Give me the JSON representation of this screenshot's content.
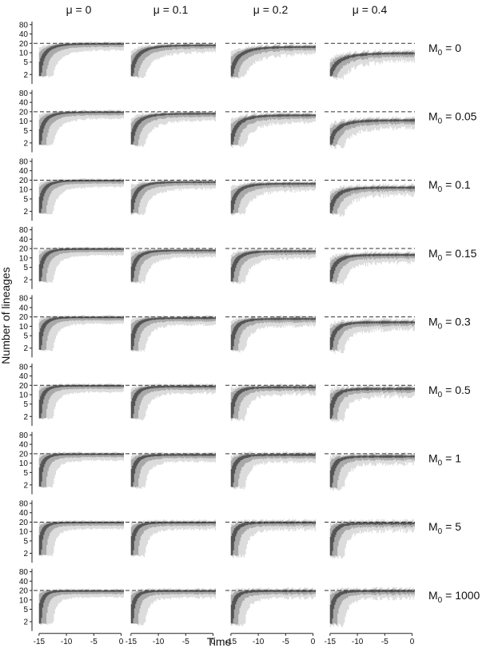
{
  "chart_data": {
    "type": "area",
    "title": "",
    "xlabel": "Time",
    "ylabel": "Number of lineages",
    "xlim": [
      -16,
      0.5
    ],
    "y_scale": "log",
    "ylim": [
      1,
      100
    ],
    "x_ticks": [
      -15,
      -10,
      -5,
      0
    ],
    "x_tick_labels": [
      "-15",
      "-10",
      "-5",
      "0"
    ],
    "y_ticks": [
      2,
      5,
      10,
      20,
      40,
      80
    ],
    "y_tick_labels": [
      "2",
      "5",
      "10",
      "20",
      "40",
      "80"
    ],
    "reference_line": {
      "y": 20,
      "style": "dashed"
    },
    "grid": false,
    "legend": "none",
    "colors": {
      "inner_band": "#555555",
      "middle_band": "#a9a9a9",
      "outer_band": "#dcdcdc",
      "reference_line": "#333333"
    },
    "columns": [
      {
        "label": "μ = 0",
        "mu": 0
      },
      {
        "label": "μ = 0.1",
        "mu": 0.1
      },
      {
        "label": "μ = 0.2",
        "mu": 0.2
      },
      {
        "label": "μ = 0.4",
        "mu": 0.4
      }
    ],
    "rows": [
      {
        "label_main": "M",
        "label_sub": "0",
        "label_rest": " = 0",
        "M0": 0
      },
      {
        "label_main": "M",
        "label_sub": "0",
        "label_rest": " = 0.05",
        "M0": 0.05
      },
      {
        "label_main": "M",
        "label_sub": "0",
        "label_rest": " = 0.1",
        "M0": 0.1
      },
      {
        "label_main": "M",
        "label_sub": "0",
        "label_rest": " = 0.15",
        "M0": 0.15
      },
      {
        "label_main": "M",
        "label_sub": "0",
        "label_rest": " = 0.3",
        "M0": 0.3
      },
      {
        "label_main": "M",
        "label_sub": "0",
        "label_rest": " = 0.5",
        "M0": 0.5
      },
      {
        "label_main": "M",
        "label_sub": "0",
        "label_rest": " = 1",
        "M0": 1
      },
      {
        "label_main": "M",
        "label_sub": "0",
        "label_rest": " = 5",
        "M0": 5
      },
      {
        "label_main": "M",
        "label_sub": "0",
        "label_rest": " = 1000",
        "M0": 1000
      }
    ],
    "plateau": [
      [
        20,
        18,
        16,
        10
      ],
      [
        20,
        18,
        16,
        11
      ],
      [
        20,
        18,
        16,
        12
      ],
      [
        20,
        18,
        17,
        13
      ],
      [
        20,
        19,
        18,
        14
      ],
      [
        20,
        19,
        18,
        16
      ],
      [
        20,
        19,
        19,
        17
      ],
      [
        20,
        20,
        20,
        19
      ],
      [
        20,
        20,
        20,
        20
      ]
    ],
    "lineages_start": 2,
    "start_time": -15
  }
}
